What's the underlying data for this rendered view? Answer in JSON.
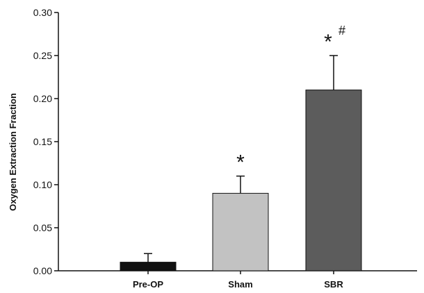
{
  "chart_data": {
    "type": "bar",
    "title": "",
    "xlabel": "",
    "ylabel": "Oxygen Extraction Fraction",
    "ylim": [
      0,
      0.3
    ],
    "yticks": [
      "0.00",
      "0.05",
      "0.10",
      "0.15",
      "0.20",
      "0.25",
      "0.30"
    ],
    "categories": [
      "Pre-OP",
      "Sham",
      "SBR"
    ],
    "values": [
      0.01,
      0.09,
      0.21
    ],
    "error_plus": [
      0.01,
      0.02,
      0.04
    ],
    "annotations": [
      {
        "category": "Sham",
        "symbols": [
          "*"
        ]
      },
      {
        "category": "SBR",
        "symbols": [
          "*",
          "#"
        ]
      }
    ],
    "colors": {
      "Pre-OP": "#111111",
      "Sham": "#c2c2c2",
      "SBR": "#5c5c5c"
    },
    "grid": false
  }
}
